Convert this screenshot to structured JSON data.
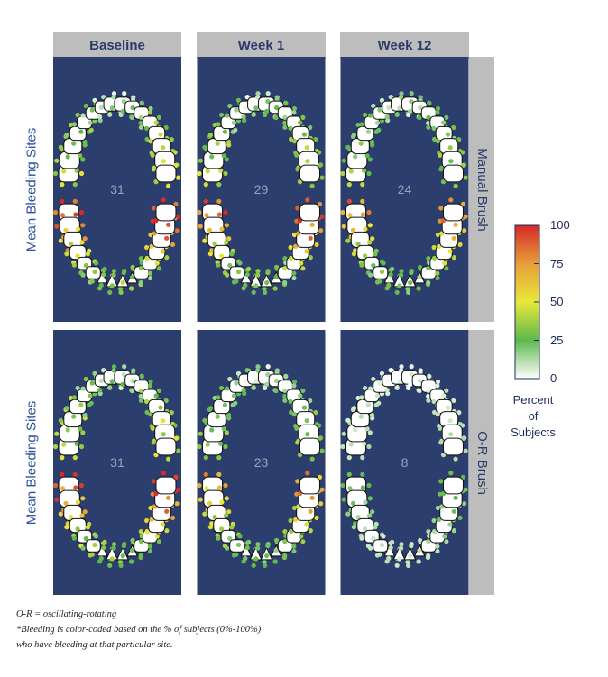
{
  "chart_data": {
    "type": "heatmap",
    "columns": [
      "Baseline",
      "Week 1",
      "Week 12"
    ],
    "rows": [
      "Manual Brush",
      "O-R Brush"
    ],
    "ylabel": "Mean Bleeding Sites",
    "mean_bleeding_sites": [
      [
        31,
        29,
        24
      ],
      [
        31,
        23,
        8
      ]
    ],
    "colorbar": {
      "title": [
        "Percent",
        "of",
        "Subjects"
      ],
      "ticks": [
        100,
        75,
        50,
        25,
        0
      ],
      "range": [
        0,
        100
      ],
      "colors": [
        "#ffffff",
        "#5db84d",
        "#e8e83a",
        "#e79e3a",
        "#d42a2a"
      ]
    }
  },
  "colors": {
    "panel": "#2c3e6e",
    "header": "#bdbdbd",
    "tooth": "#ffffff"
  },
  "footnotes": {
    "line1": "O-R = oscillating-rotating",
    "line2": "*Bleeding is color-coded based on the % of subjects (0%-100%)",
    "line3": "who have bleeding at that particular site."
  }
}
